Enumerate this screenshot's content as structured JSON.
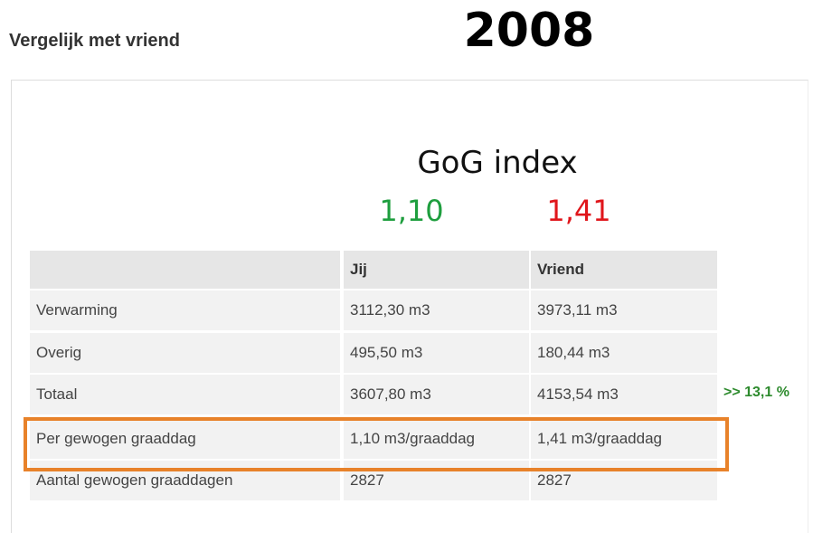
{
  "header": {
    "title": "Vergelijk met vriend",
    "year": "2008"
  },
  "index": {
    "label": "GoG index",
    "jij": "1,10",
    "vriend": "1,41"
  },
  "table": {
    "columns": [
      "Jij",
      "Vriend"
    ],
    "rows": [
      [
        "Verwarming",
        "3112,30 m3",
        "3973,11 m3"
      ],
      [
        "Overig",
        "495,50 m3",
        "180,44 m3"
      ],
      [
        "Totaal",
        "3607,80 m3",
        "4153,54 m3"
      ],
      [
        "Per gewogen graaddag",
        "1,10 m3/graaddag",
        "1,41 m3/graaddag"
      ],
      [
        "Aantal gewogen graaddagen",
        "2827",
        "2827"
      ]
    ],
    "totaal_note": ">> 13,1 %"
  }
}
